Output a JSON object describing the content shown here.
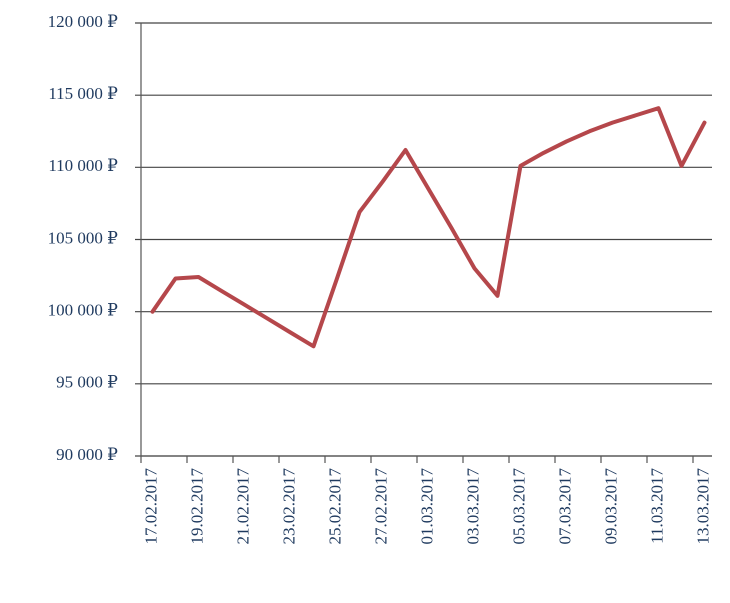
{
  "chart_data": {
    "type": "line",
    "categories": [
      "17.02.2017",
      null,
      "19.02.2017",
      null,
      "21.02.2017",
      null,
      "23.02.2017",
      null,
      "25.02.2017",
      null,
      "27.02.2017",
      null,
      "01.03.2017",
      null,
      "03.03.2017",
      null,
      "05.03.2017",
      null,
      "07.03.2017",
      null,
      "09.03.2017",
      null,
      "11.03.2017",
      null,
      "13.03.2017"
    ],
    "values": [
      100000,
      102300,
      102400,
      101440,
      100480,
      99520,
      98560,
      97600,
      102200,
      106900,
      109000,
      111200,
      108500,
      105800,
      103000,
      101100,
      110100,
      111000,
      111800,
      112500,
      113100,
      113600,
      114100,
      110100,
      113100
    ],
    "color": "#b5474b",
    "ylim": [
      90000,
      120000
    ],
    "yticks": [
      {
        "value": 90000,
        "label": "90 000 ₽"
      },
      {
        "value": 95000,
        "label": "95 000 ₽"
      },
      {
        "value": 100000,
        "label": "100 000 ₽"
      },
      {
        "value": 105000,
        "label": "105 000 ₽"
      },
      {
        "value": 110000,
        "label": "110 000 ₽"
      },
      {
        "value": 115000,
        "label": "115 000 ₽"
      },
      {
        "value": 120000,
        "label": "120 000 ₽"
      }
    ],
    "grid": true
  }
}
